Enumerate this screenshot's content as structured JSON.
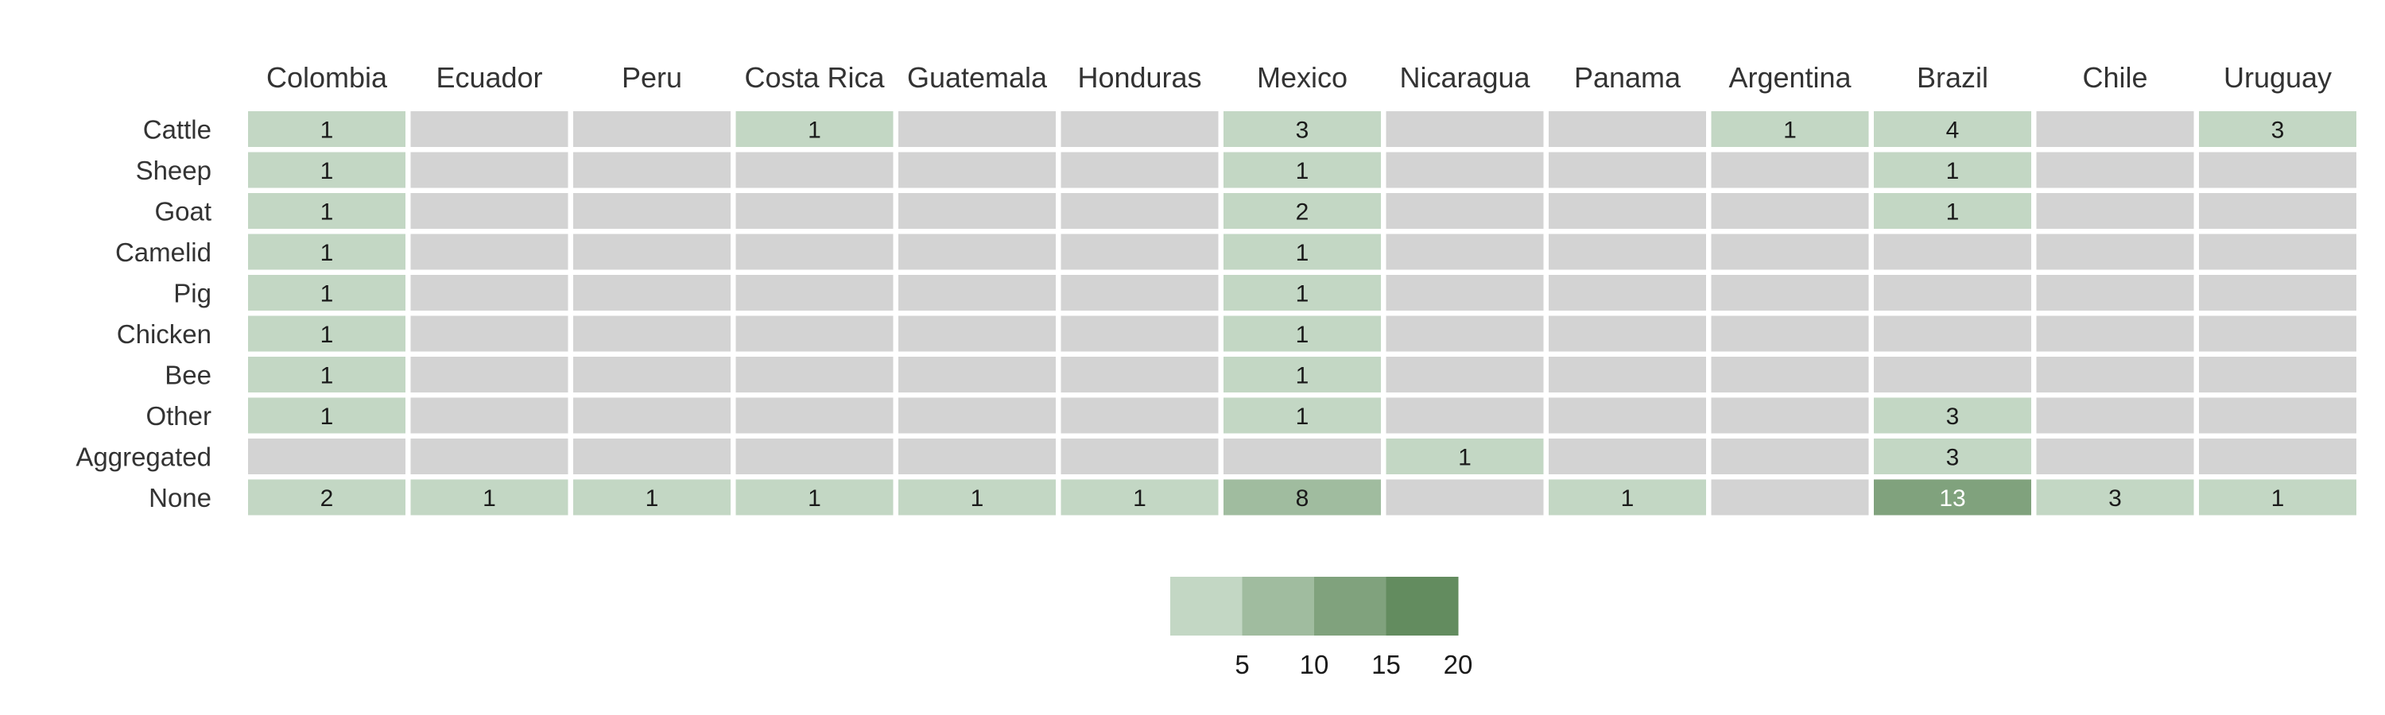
{
  "chart_data": {
    "type": "heatmap",
    "title": "",
    "xlabel": "",
    "ylabel": "",
    "columns": [
      "Colombia",
      "Ecuador",
      "Peru",
      "Costa Rica",
      "Guatemala",
      "Honduras",
      "Mexico",
      "Nicaragua",
      "Panama",
      "Argentina",
      "Brazil",
      "Chile",
      "Uruguay"
    ],
    "rows": [
      "Cattle",
      "Sheep",
      "Goat",
      "Camelid",
      "Pig",
      "Chicken",
      "Bee",
      "Other",
      "Aggregated",
      "None"
    ],
    "values": [
      [
        1,
        null,
        null,
        1,
        null,
        null,
        3,
        null,
        null,
        1,
        4,
        null,
        3
      ],
      [
        1,
        null,
        null,
        null,
        null,
        null,
        1,
        null,
        null,
        null,
        1,
        null,
        null
      ],
      [
        1,
        null,
        null,
        null,
        null,
        null,
        2,
        null,
        null,
        null,
        1,
        null,
        null
      ],
      [
        1,
        null,
        null,
        null,
        null,
        null,
        1,
        null,
        null,
        null,
        null,
        null,
        null
      ],
      [
        1,
        null,
        null,
        null,
        null,
        null,
        1,
        null,
        null,
        null,
        null,
        null,
        null
      ],
      [
        1,
        null,
        null,
        null,
        null,
        null,
        1,
        null,
        null,
        null,
        null,
        null,
        null
      ],
      [
        1,
        null,
        null,
        null,
        null,
        null,
        1,
        null,
        null,
        null,
        null,
        null,
        null
      ],
      [
        1,
        null,
        null,
        null,
        null,
        null,
        1,
        null,
        null,
        null,
        3,
        null,
        null
      ],
      [
        null,
        null,
        null,
        null,
        null,
        null,
        null,
        1,
        null,
        null,
        3,
        null,
        null
      ],
      [
        2,
        1,
        1,
        1,
        1,
        1,
        8,
        null,
        1,
        null,
        13,
        3,
        1
      ]
    ],
    "empty_color": "#d3d3d3",
    "color_bins": [
      {
        "max": 5,
        "color": "#c3d7c4"
      },
      {
        "max": 10,
        "color": "#a0bc9f"
      },
      {
        "max": 15,
        "color": "#80a27d"
      },
      {
        "max": 20,
        "color": "#638c5f"
      }
    ],
    "legend": {
      "position": "bottom",
      "ticks": [
        "5",
        "10",
        "15",
        "20"
      ]
    }
  }
}
